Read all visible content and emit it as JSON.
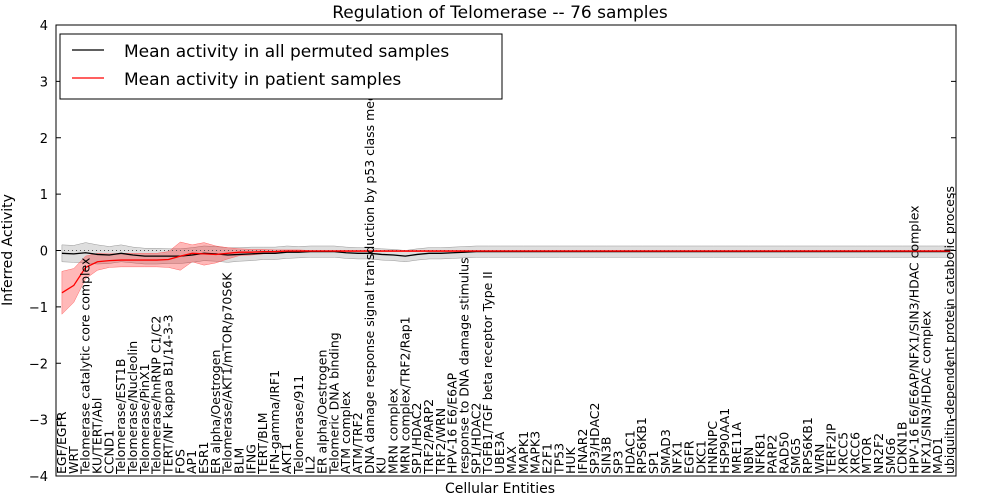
{
  "chart_data": {
    "type": "line",
    "title": "Regulation of Telomerase -- 76 samples",
    "xlabel": "Cellular Entities",
    "ylabel": "Inferred Activity",
    "ylim": [
      -4,
      4
    ],
    "yticks": [
      -4,
      -3,
      -2,
      -1,
      0,
      1,
      2,
      3,
      4
    ],
    "ytick_labels": [
      "−4",
      "−3",
      "−2",
      "−1",
      "0",
      "1",
      "2",
      "3",
      "4"
    ],
    "grid": false,
    "legend_position": "top-left",
    "legend": [
      {
        "name": "Mean activity in all permuted samples",
        "color": "#000000"
      },
      {
        "name": "Mean activity in patient samples",
        "color": "#ff0000"
      }
    ],
    "categories": [
      "EGF/EGFR",
      "WRT",
      "Telomerase catalytic core complex",
      "KU/TERT/Abl",
      "CCND1",
      "Telomerase/EST1B",
      "Telomerase/Nucleolin",
      "Telomerase/PinX1",
      "Telomerase/hnRNP C1/C2",
      "TERT/NF kappa B1/14-3-3",
      "FOS",
      "AP1",
      "ESR1",
      "ER alpha/Oestrogen",
      "Telomerase/AKT1/mTOR/p70S6K",
      "BLM",
      "IFNG",
      "TERT/BLM",
      "IFN-gamma/IRF1",
      "AKT1",
      "Telomerase/911",
      "IL2",
      "ER alpha/Oestrogen",
      "Telomeric DNA binding",
      "ATM complex",
      "ATM/TRF2",
      "DNA damage response signal transduction by p53 class mediator",
      "KU",
      "MRN complex",
      "MRN complex/TRF2/Rap1",
      "SP1/HDAC2",
      "TRF2/PARP2",
      "TRF2/WRN",
      "HPV-16 E6/E6AP",
      "response to DNA damage stimulus",
      "SP1/HDAC2",
      "TGFB1/TGF beta receptor Type II",
      "UBE3A",
      "MAX",
      "MAPK1",
      "MAPK3",
      "E2F1",
      "TP53",
      "HUK",
      "IFNAR2",
      "SP3/HDAC2",
      "SIN3B",
      "SP3",
      "HDAC1",
      "RPS6KB1",
      "SP1",
      "SMAD3",
      "NFX1",
      "EGFR",
      "DKC1",
      "HNRNPC",
      "HSP90AA1",
      "MRE11A",
      "NBN",
      "NFKB1",
      "PARP2",
      "RAD50",
      "SMG5",
      "RPS6KB1",
      "WRN",
      "TERF2IP",
      "XRCC5",
      "XRCC6",
      "MTOR",
      "NR2F2",
      "SMG6",
      "CDKN1B",
      "HPV-16 E6/E6AP/NFX1/SIN3/HDAC complex",
      "NFX1/SIN3/HDAC complex",
      "MAD1",
      "ubiquitin-dependent protein catabolic process"
    ],
    "series": [
      {
        "name": "Mean activity in all permuted samples",
        "color": "#000000",
        "values": [
          -0.05,
          -0.06,
          -0.04,
          -0.07,
          -0.08,
          -0.05,
          -0.08,
          -0.1,
          -0.1,
          -0.1,
          -0.1,
          -0.08,
          -0.05,
          -0.06,
          -0.08,
          -0.07,
          -0.06,
          -0.05,
          -0.05,
          -0.03,
          -0.03,
          -0.02,
          -0.02,
          -0.02,
          -0.04,
          -0.05,
          -0.05,
          -0.07,
          -0.08,
          -0.1,
          -0.07,
          -0.05,
          -0.05,
          -0.04,
          -0.03,
          -0.02,
          -0.02,
          -0.02,
          -0.02,
          -0.02,
          -0.02,
          -0.02,
          -0.02,
          -0.02,
          -0.02,
          -0.02,
          -0.02,
          -0.02,
          -0.02,
          -0.02,
          -0.02,
          -0.02,
          -0.02,
          -0.02,
          -0.02,
          -0.02,
          -0.02,
          -0.02,
          -0.02,
          -0.02,
          -0.02,
          -0.02,
          -0.02,
          -0.02,
          -0.02,
          -0.02,
          -0.02,
          -0.02,
          -0.02,
          -0.02,
          -0.02,
          -0.02,
          -0.02,
          -0.02,
          -0.02,
          -0.02
        ],
        "band": [
          0.15,
          0.15,
          0.18,
          0.17,
          0.15,
          0.15,
          0.14,
          0.14,
          0.14,
          0.13,
          0.13,
          0.13,
          0.13,
          0.13,
          0.13,
          0.12,
          0.12,
          0.11,
          0.11,
          0.11,
          0.1,
          0.1,
          0.1,
          0.1,
          0.1,
          0.1,
          0.1,
          0.1,
          0.1,
          0.1,
          0.1,
          0.1,
          0.1,
          0.1,
          0.1,
          0.1,
          0.1,
          0.1,
          0.1,
          0.1,
          0.1,
          0.1,
          0.1,
          0.1,
          0.1,
          0.1,
          0.1,
          0.1,
          0.1,
          0.1,
          0.1,
          0.1,
          0.1,
          0.1,
          0.1,
          0.1,
          0.1,
          0.1,
          0.1,
          0.1,
          0.1,
          0.1,
          0.1,
          0.1,
          0.1,
          0.1,
          0.1,
          0.1,
          0.1,
          0.1,
          0.1,
          0.1,
          0.1,
          0.1,
          0.1,
          0.1
        ]
      },
      {
        "name": "Mean activity in patient samples",
        "color": "#ff0000",
        "values": [
          -0.75,
          -0.62,
          -0.3,
          -0.2,
          -0.18,
          -0.17,
          -0.17,
          -0.17,
          -0.17,
          -0.16,
          -0.1,
          -0.05,
          -0.06,
          -0.07,
          -0.05,
          -0.03,
          -0.03,
          -0.02,
          -0.02,
          -0.01,
          -0.01,
          -0.01,
          -0.01,
          -0.01,
          -0.01,
          -0.01,
          -0.01,
          -0.01,
          -0.01,
          -0.01,
          -0.01,
          -0.01,
          -0.01,
          -0.01,
          -0.01,
          -0.01,
          -0.01,
          -0.01,
          -0.01,
          -0.01,
          -0.01,
          -0.01,
          -0.01,
          -0.01,
          -0.01,
          -0.01,
          -0.01,
          -0.01,
          -0.01,
          -0.01,
          -0.01,
          -0.01,
          -0.01,
          -0.01,
          -0.01,
          -0.01,
          -0.01,
          -0.01,
          -0.01,
          -0.01,
          -0.01,
          -0.01,
          -0.01,
          -0.01,
          -0.01,
          -0.01,
          -0.01,
          -0.01,
          -0.01,
          -0.01,
          -0.01,
          -0.01,
          -0.01,
          -0.01,
          -0.01,
          -0.01
        ],
        "band": [
          0.38,
          0.3,
          0.2,
          0.15,
          0.12,
          0.12,
          0.12,
          0.12,
          0.12,
          0.14,
          0.25,
          0.15,
          0.2,
          0.15,
          0.1,
          0.06,
          0.05,
          0.04,
          0.03,
          0.02,
          0.02,
          0.01,
          0.01,
          0.01,
          0.01,
          0.01,
          0.01,
          0.01,
          0.01,
          0.01,
          0.01,
          0.01,
          0.01,
          0.01,
          0.01,
          0.01,
          0.01,
          0.01,
          0.01,
          0.01,
          0.01,
          0.01,
          0.01,
          0.01,
          0.01,
          0.01,
          0.01,
          0.01,
          0.01,
          0.01,
          0.01,
          0.01,
          0.01,
          0.01,
          0.01,
          0.01,
          0.01,
          0.01,
          0.01,
          0.01,
          0.01,
          0.01,
          0.01,
          0.01,
          0.01,
          0.01,
          0.01,
          0.01,
          0.01,
          0.01,
          0.01,
          0.01,
          0.01,
          0.01,
          0.01,
          0.01
        ]
      }
    ]
  }
}
